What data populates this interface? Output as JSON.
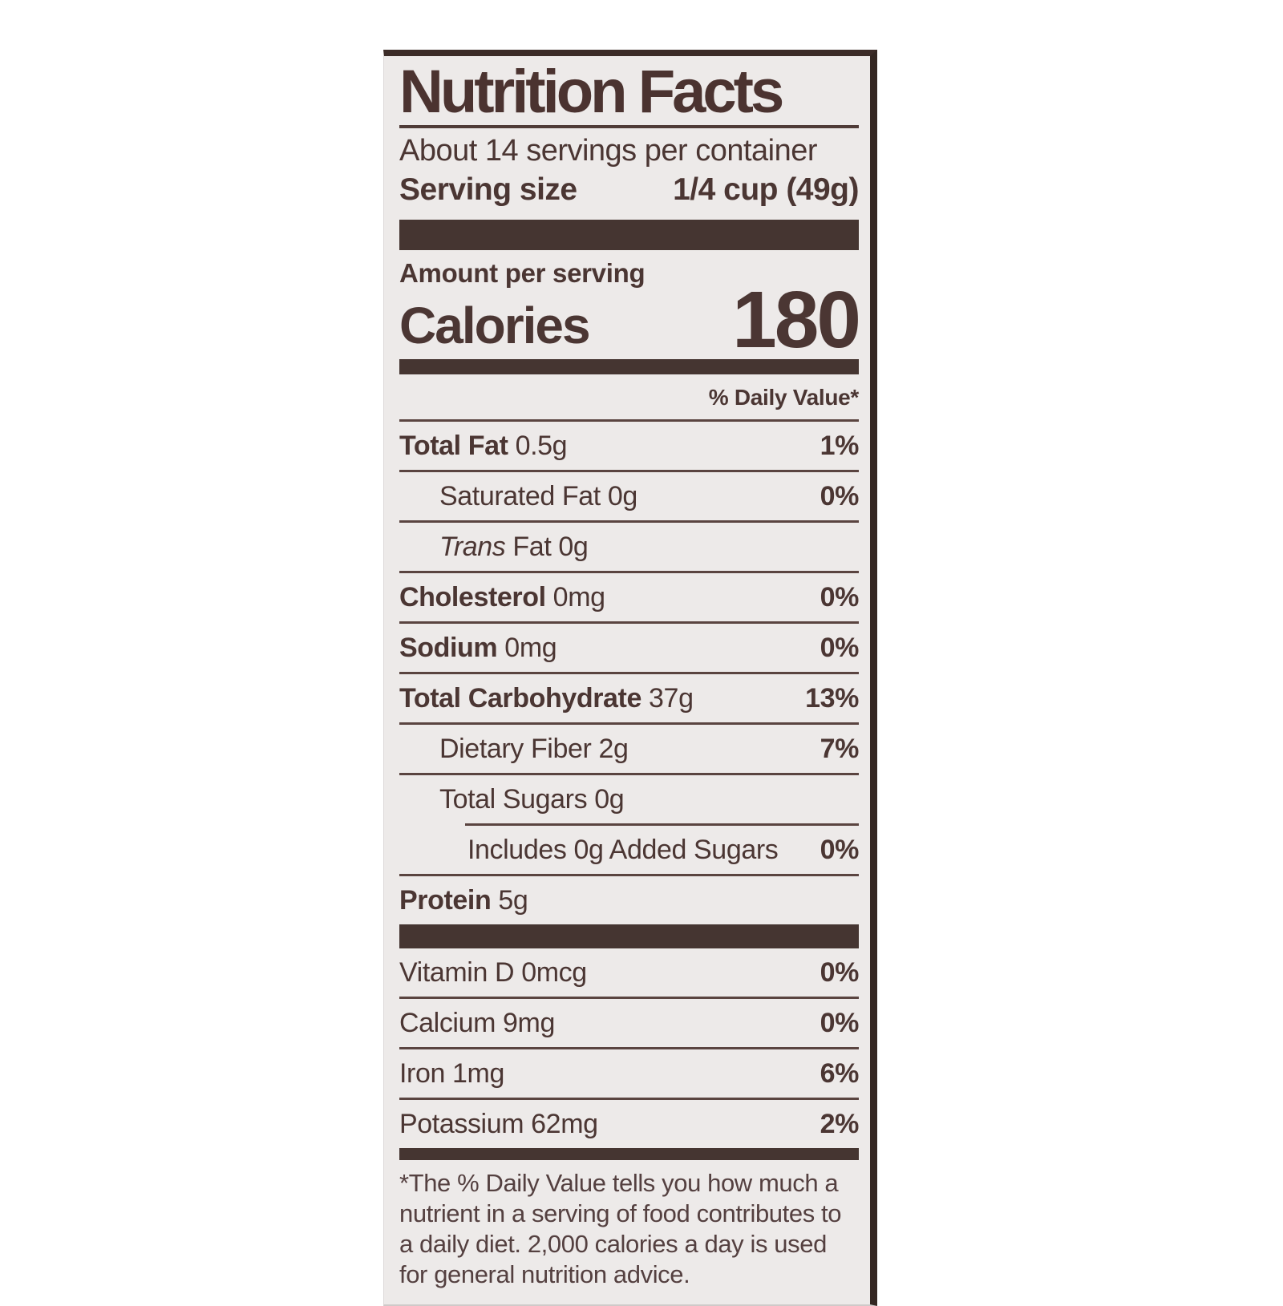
{
  "label": {
    "title": "Nutrition Facts",
    "servings_per_container": "About 14 servings per container",
    "serving_size_label": "Serving size",
    "serving_size_value": "1/4 cup (49g)",
    "amount_per_serving": "Amount per serving",
    "calories_label": "Calories",
    "calories_value": "180",
    "daily_value_header": "% Daily Value*",
    "rows": [
      {
        "bold": "Total Fat",
        "text": " 0.5g",
        "pct": "1%"
      },
      {
        "text": "Saturated Fat 0g",
        "pct": "0%"
      },
      {
        "italic": "Trans",
        "text": " Fat 0g",
        "pct": ""
      },
      {
        "bold": "Cholesterol",
        "text": " 0mg",
        "pct": "0%"
      },
      {
        "bold": "Sodium",
        "text": " 0mg",
        "pct": "0%"
      },
      {
        "bold": "Total Carbohydrate",
        "text": " 37g",
        "pct": "13%"
      },
      {
        "text": "Dietary Fiber 2g",
        "pct": "7%"
      },
      {
        "text": "Total Sugars 0g",
        "pct": ""
      },
      {
        "text": "Includes 0g Added Sugars",
        "pct": "0%"
      },
      {
        "bold": "Protein",
        "text": " 5g",
        "pct": ""
      }
    ],
    "vitamins": [
      {
        "text": "Vitamin D 0mcg",
        "pct": "0%"
      },
      {
        "text": "Calcium 9mg",
        "pct": "0%"
      },
      {
        "text": "Iron 1mg",
        "pct": "6%"
      },
      {
        "text": "Potassium 62mg",
        "pct": "2%"
      }
    ],
    "footnote": "*The % Daily Value tells you how much a nutrient in a serving of food contributes to a daily diet. 2,000 calories a day is used for general nutrition advice.",
    "colors": {
      "text": "#4b3633",
      "bar": "#453531",
      "label_background": "#edeae9"
    }
  }
}
